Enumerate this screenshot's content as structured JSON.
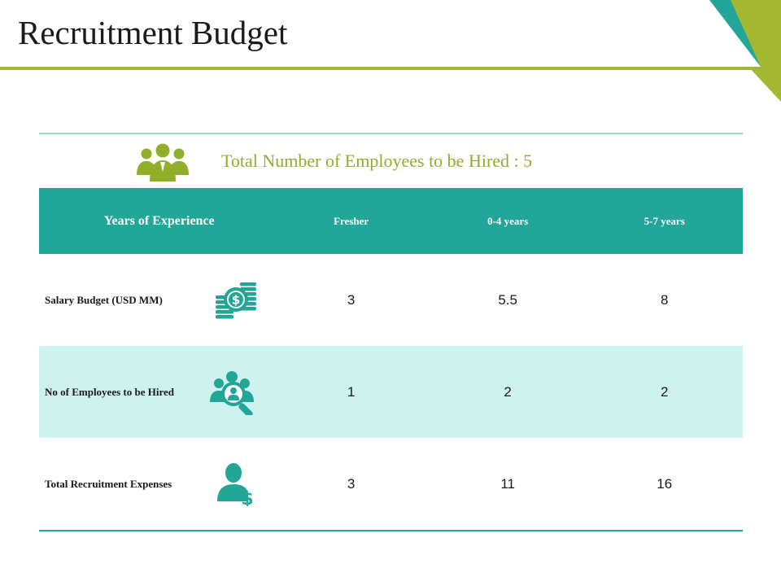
{
  "slide": {
    "title": "Recruitment Budget",
    "accent_colors": {
      "teal": "#21a697",
      "green": "#a3b830",
      "light_teal": "#cef3ef"
    }
  },
  "table": {
    "total_label": "Total Number of Employees to be Hired : 5",
    "header": {
      "main": "Years of Experience",
      "columns": [
        "Fresher",
        "0-4 years",
        "5-7 years"
      ]
    },
    "rows": [
      {
        "label": "Salary Budget (USD MM)",
        "icon": "money-coins-icon",
        "values": [
          "3",
          "5.5",
          "8"
        ]
      },
      {
        "label": "No of Employees to be Hired",
        "icon": "people-search-icon",
        "values": [
          "1",
          "2",
          "2"
        ]
      },
      {
        "label": "Total Recruitment Expenses",
        "icon": "person-dollar-icon",
        "values": [
          "3",
          "11",
          "16"
        ]
      }
    ]
  }
}
